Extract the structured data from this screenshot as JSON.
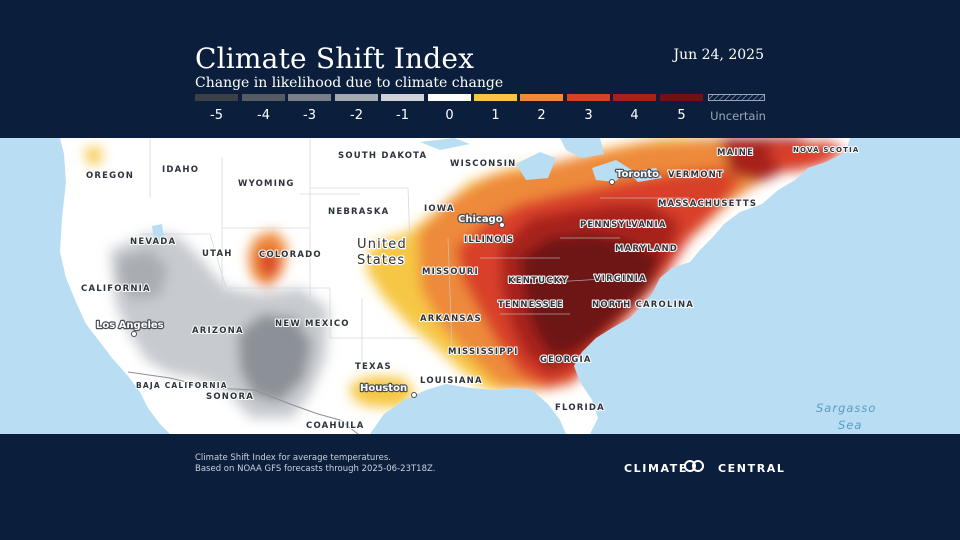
{
  "header": {
    "title": "Climate Shift Index",
    "subtitle": "Change in likelihood due to climate change",
    "date": "Jun 24, 2025"
  },
  "legend": [
    {
      "label": "-5",
      "color": "#3b3f46"
    },
    {
      "label": "-4",
      "color": "#555b63"
    },
    {
      "label": "-3",
      "color": "#7a8089"
    },
    {
      "label": "-2",
      "color": "#a5aab0"
    },
    {
      "label": "-1",
      "color": "#cfd2d6"
    },
    {
      "label": "0",
      "color": "#ffffff"
    },
    {
      "label": "1",
      "color": "#f6c744"
    },
    {
      "label": "2",
      "color": "#ee8a3a"
    },
    {
      "label": "3",
      "color": "#d9402a"
    },
    {
      "label": "4",
      "color": "#a8201d"
    },
    {
      "label": "5",
      "color": "#6e1212"
    },
    {
      "label": "Uncertain",
      "color": "hatched"
    }
  ],
  "map": {
    "ocean_color": "#b9def3",
    "land_color": "#ffffff",
    "country_label": "United\nStates",
    "labels": [
      "OREGON",
      "IDAHO",
      "WYOMING",
      "SOUTH DAKOTA",
      "WISCONSIN",
      "MAINE",
      "NOVA SCOTIA",
      "IOWA",
      "NEBRASKA",
      "NEVADA",
      "UTAH",
      "COLORADO",
      "CALIFORNIA",
      "ILLINOIS",
      "MISSOURI",
      "KENTUCKY",
      "TENNESSEE",
      "ARKANSAS",
      "MISSISSIPPI",
      "LOUISIANA",
      "TEXAS",
      "ARIZONA",
      "NEW MEXICO",
      "BAJA CALIFORNIA",
      "SONORA",
      "COAHUILA",
      "GEORGIA",
      "FLORIDA",
      "NORTH CAROLINA",
      "VIRGINIA",
      "MARYLAND",
      "PENNSYLVANIA",
      "MASSACHUSETTS",
      "VERMONT"
    ],
    "cities": [
      "Los Angeles",
      "Chicago",
      "Houston",
      "Toronto"
    ],
    "water_label": "Sargasso\nSea"
  },
  "footer": {
    "note_line1": "Climate Shift Index for average temperatures.",
    "note_line2": "Based on NOAA GFS forecasts through 2025-06-23T18Z.",
    "brand": "CLIMATE CENTRAL"
  }
}
